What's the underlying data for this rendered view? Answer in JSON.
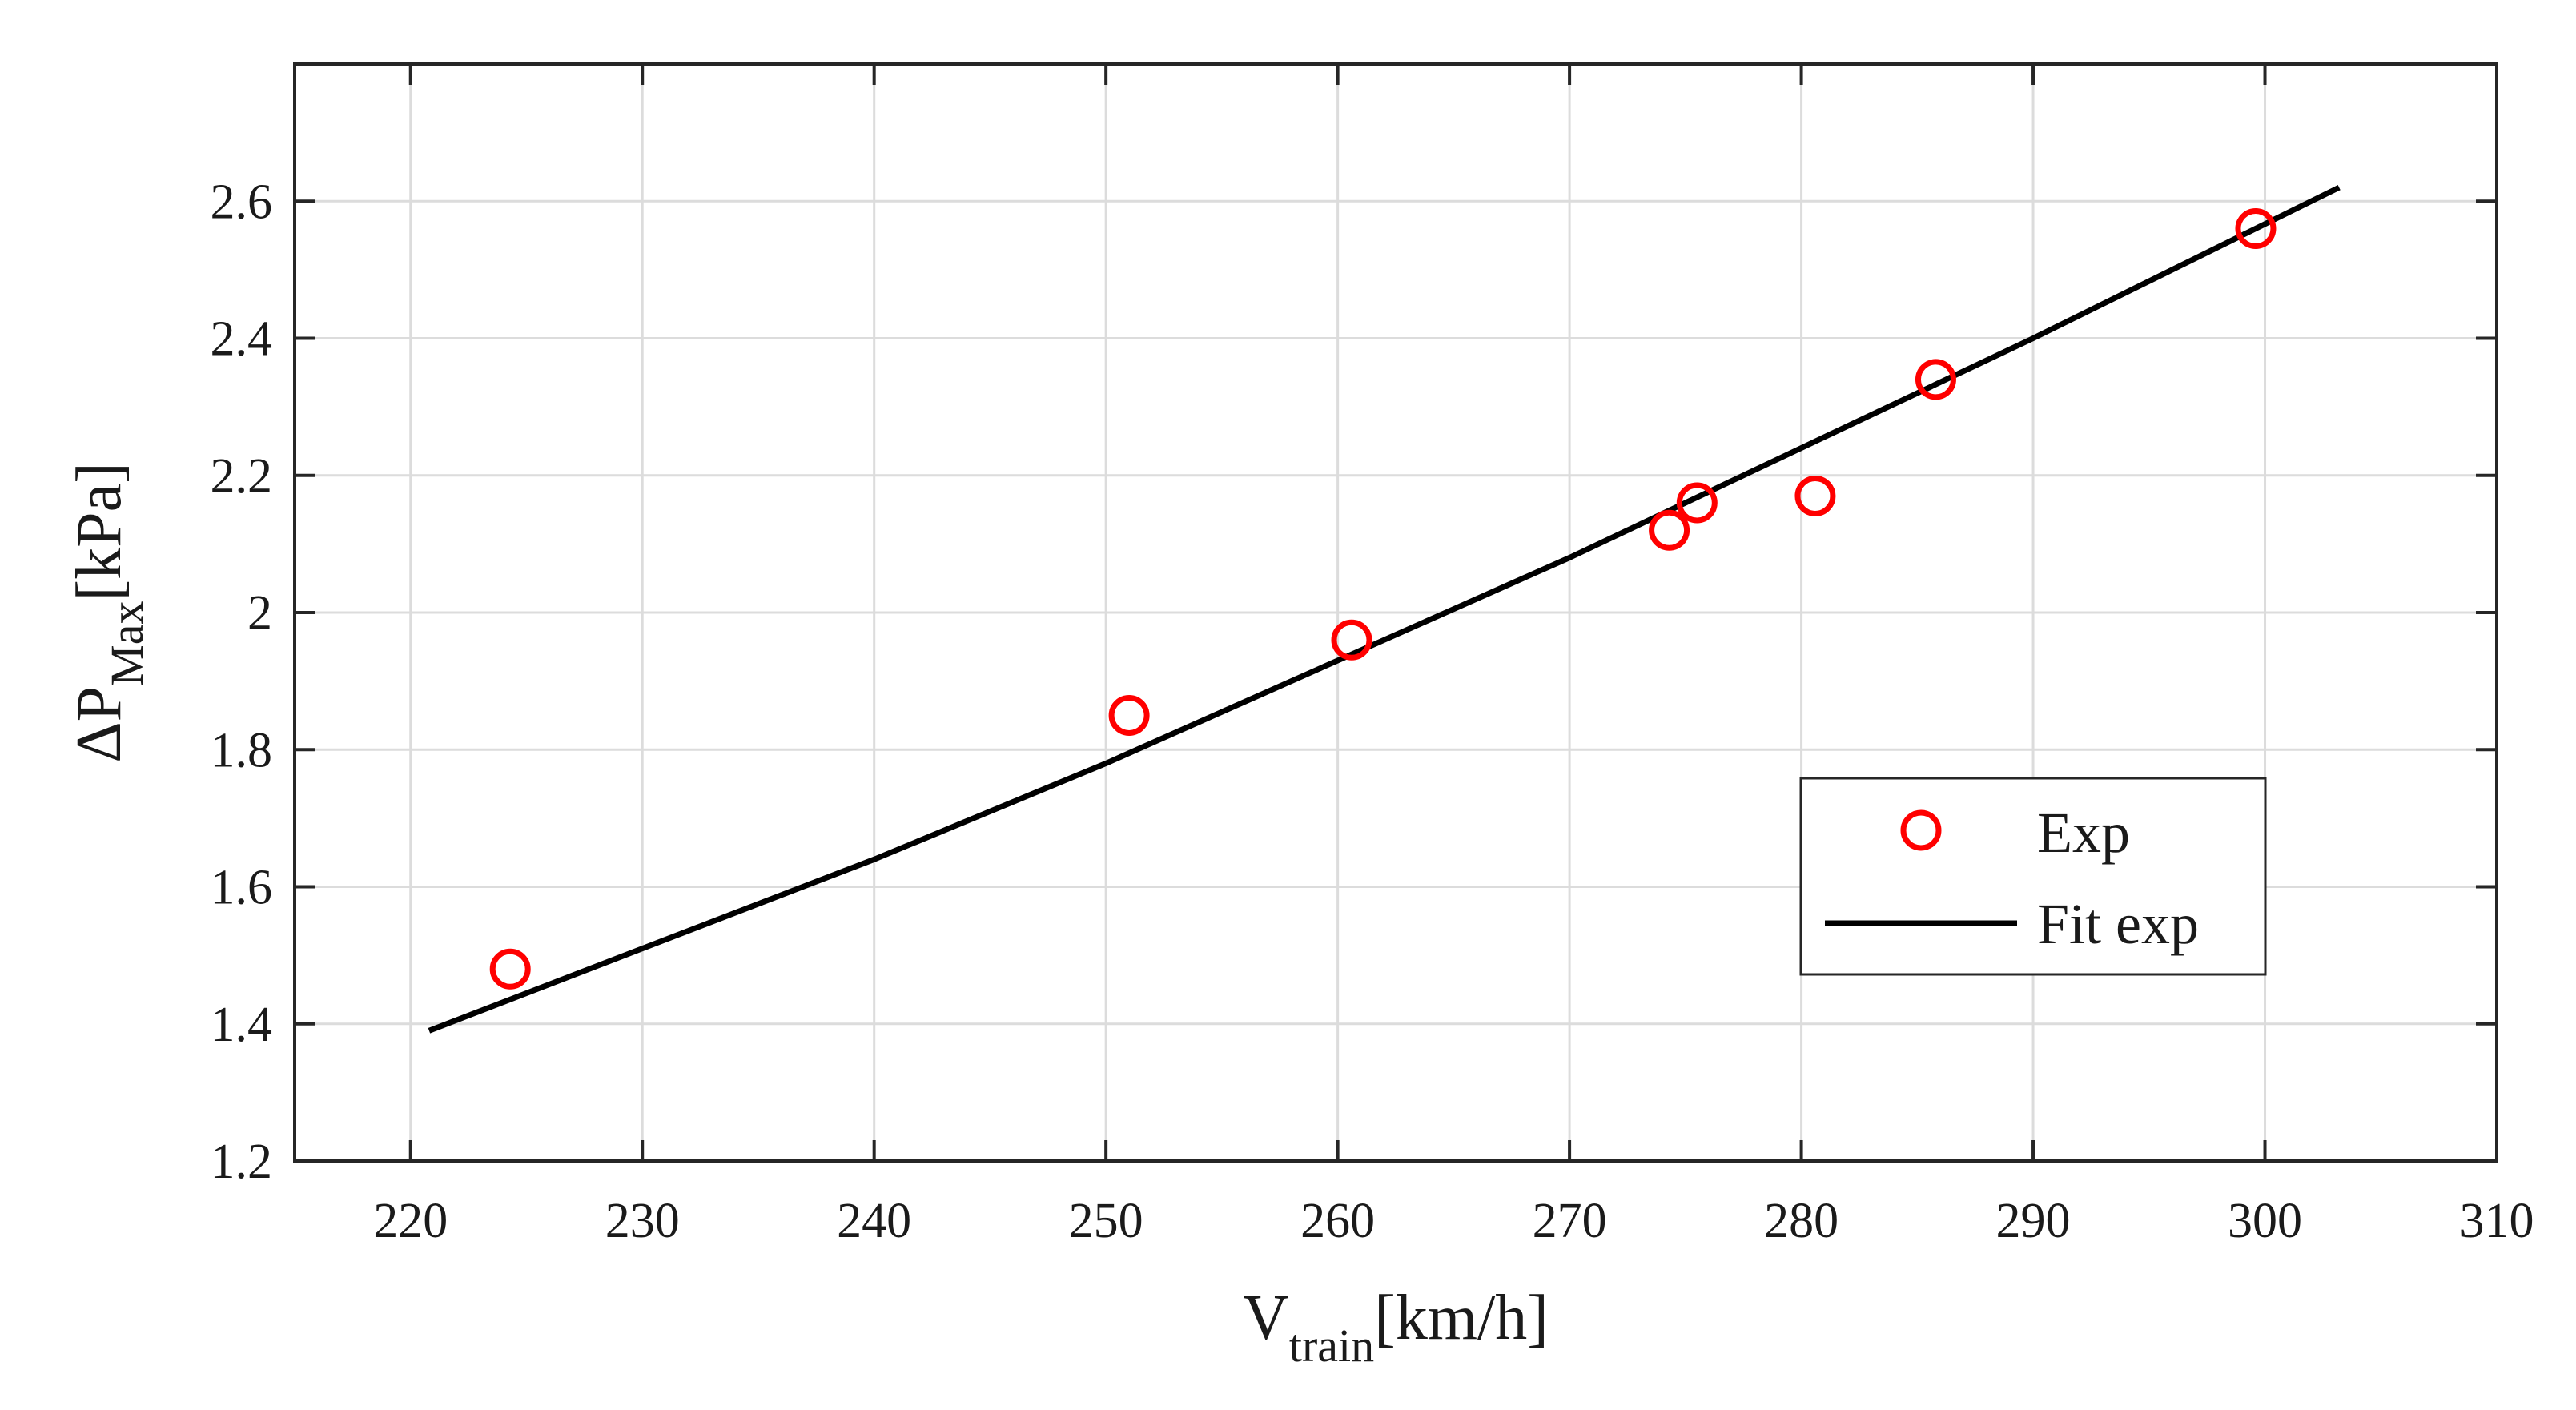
{
  "chart_data": {
    "type": "scatter",
    "title": "",
    "xlabel": {
      "main": "V",
      "sub": "train",
      "unit": "[km/h]"
    },
    "ylabel": {
      "main": "ΔP",
      "sub": "Max",
      "unit": "[kPa]"
    },
    "xlim": [
      215,
      310
    ],
    "ylim": [
      1.2,
      2.8
    ],
    "xticks": [
      220,
      230,
      240,
      250,
      260,
      270,
      280,
      290,
      300,
      310
    ],
    "yticks": [
      1.2,
      1.4,
      1.6,
      1.8,
      2.0,
      2.2,
      2.4,
      2.6
    ],
    "ytick_labels": [
      "1.2",
      "1.4",
      "1.6",
      "1.8",
      "2",
      "2.2",
      "2.4",
      "2.6"
    ],
    "grid": true,
    "legend_position": "bottom-right",
    "series": [
      {
        "name": "Exp",
        "kind": "scatter",
        "marker": "circle-open",
        "color": "#ff0000",
        "x": [
          224.3,
          251.0,
          260.6,
          274.3,
          275.5,
          280.6,
          285.8,
          299.6
        ],
        "y": [
          1.48,
          1.85,
          1.96,
          2.12,
          2.16,
          2.17,
          2.34,
          2.56
        ]
      },
      {
        "name": "Fit exp",
        "kind": "line",
        "color": "#000000",
        "x": [
          220.8,
          230,
          240,
          250,
          260,
          270,
          280,
          290,
          303.2
        ],
        "y": [
          1.39,
          1.51,
          1.64,
          1.78,
          1.93,
          2.08,
          2.24,
          2.4,
          2.62
        ]
      }
    ]
  }
}
